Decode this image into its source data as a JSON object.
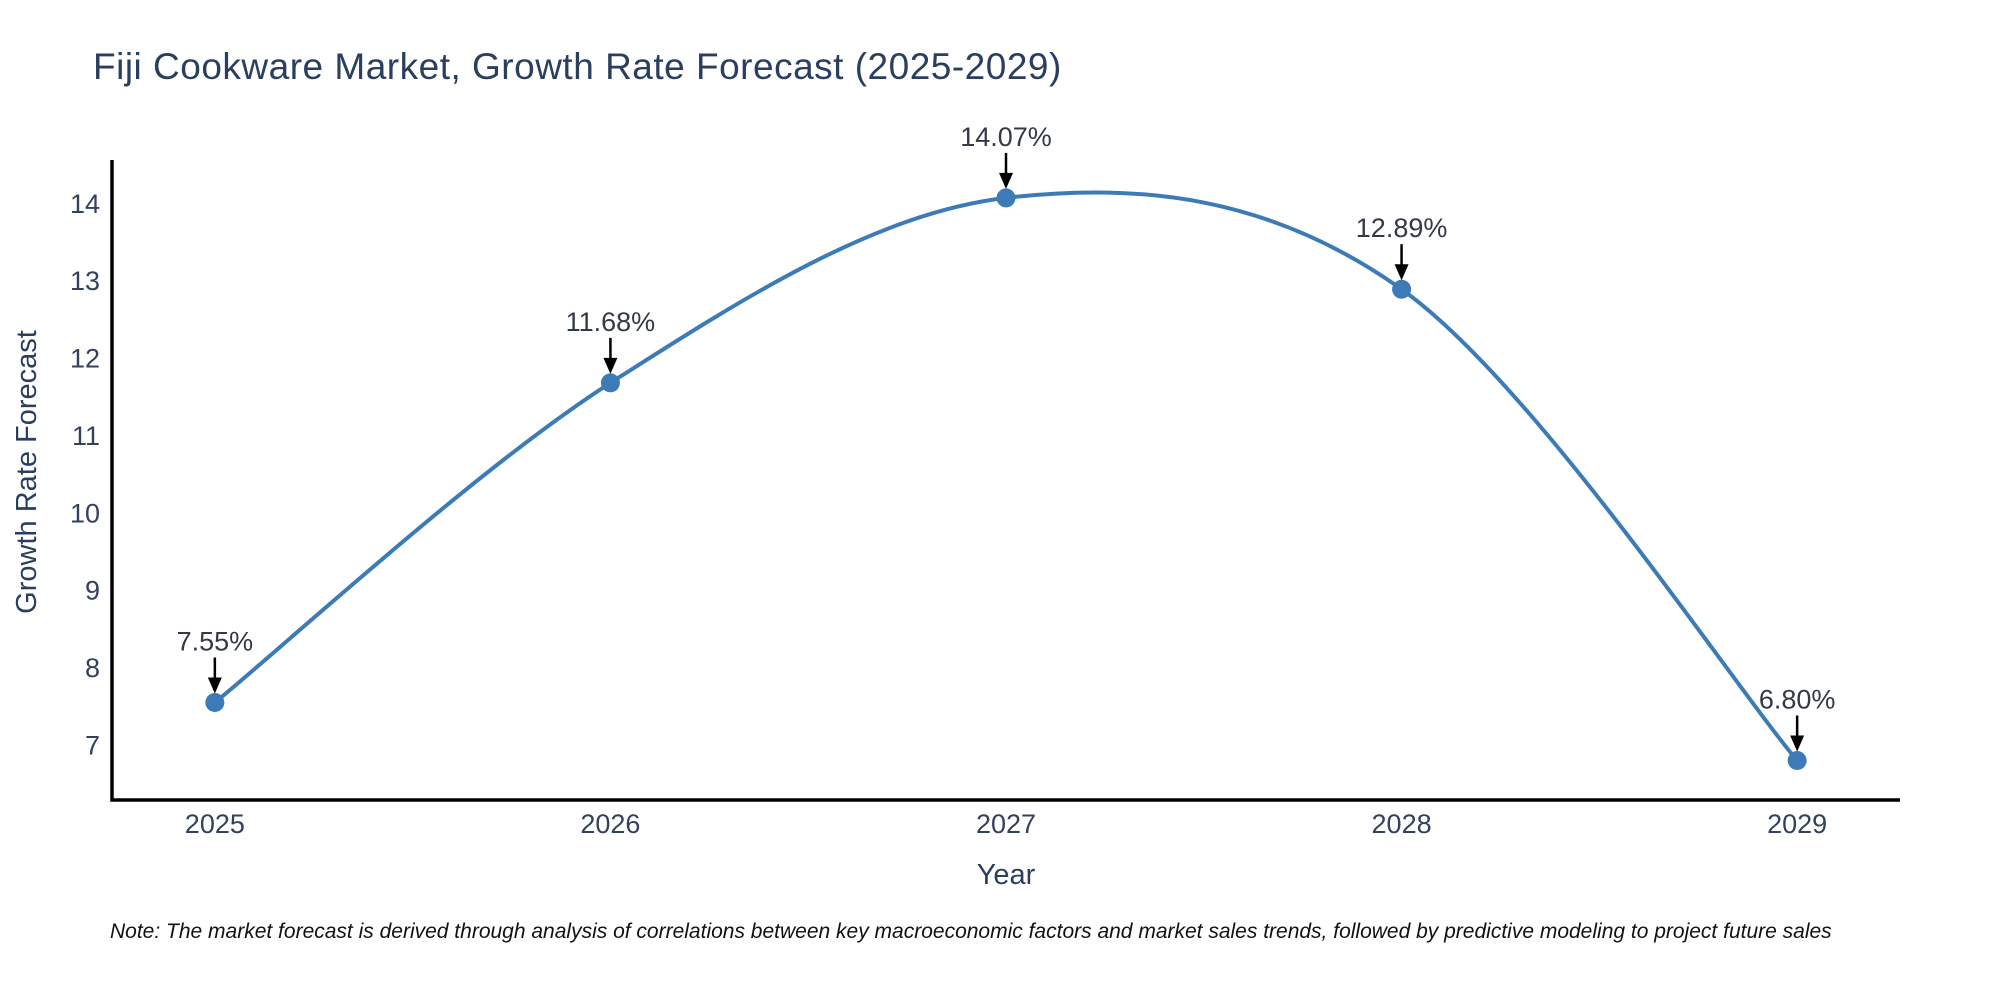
{
  "note": "Note: The market forecast is derived through analysis of correlations between key macroeconomic factors and market sales trends, followed by predictive modeling to project future sales",
  "chart_data": {
    "type": "line",
    "title": "Fiji Cookware Market, Growth Rate Forecast (2025-2029)",
    "xlabel": "Year",
    "ylabel": "Growth Rate Forecast",
    "x": [
      2025,
      2026,
      2027,
      2028,
      2029
    ],
    "values": [
      7.55,
      11.68,
      14.07,
      12.89,
      6.8
    ],
    "point_labels": [
      "7.55%",
      "11.68%",
      "14.07%",
      "12.89%",
      "6.80%"
    ],
    "xticks": [
      "2025",
      "2026",
      "2027",
      "2028",
      "2029"
    ],
    "yticks": [
      7,
      8,
      9,
      10,
      11,
      12,
      13,
      14
    ],
    "xlim": [
      2024.74,
      2029.26
    ],
    "ylim": [
      6.29,
      14.56
    ],
    "line_shape": "spline",
    "grid": false,
    "legend": "none",
    "colors": {
      "line": "#3d7bb7",
      "marker": "#3d7bb7",
      "axis": "#000000",
      "title": "#2a3f5f",
      "tick": "#33415c",
      "annotation": "#333a45",
      "arrow": "#000000",
      "note": "#111111"
    }
  }
}
